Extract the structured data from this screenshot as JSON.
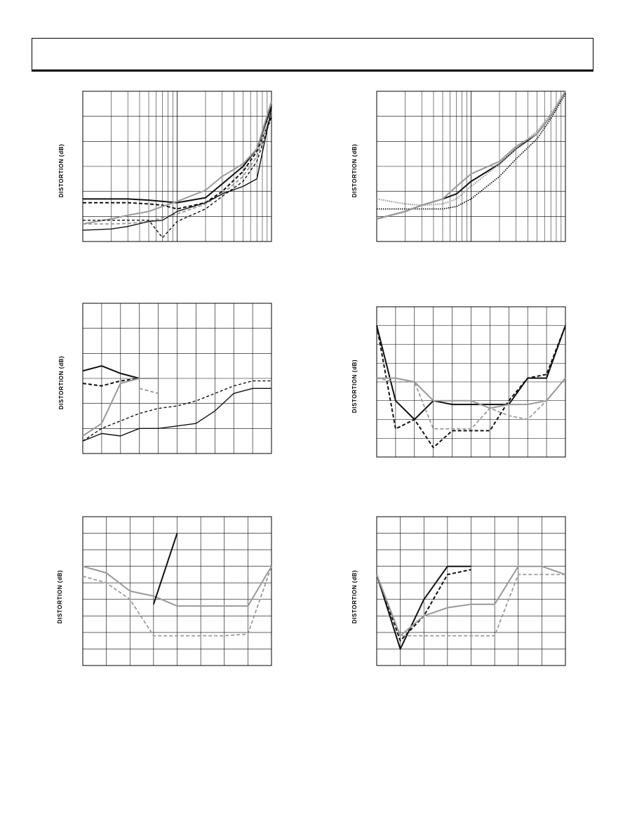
{
  "header": {
    "title": ""
  },
  "chart_data": [
    {
      "type": "line",
      "ylabel": "DISTORTION (dB)",
      "xscale": "log",
      "grid": true,
      "x": [
        1,
        2,
        3,
        5,
        7,
        10,
        20,
        30,
        50,
        70,
        100
      ],
      "series": [
        {
          "style": "solid-dark",
          "values": [
            1.7,
            1.7,
            1.7,
            1.65,
            1.6,
            1.55,
            1.75,
            2.3,
            3.0,
            3.7,
            5.4
          ]
        },
        {
          "style": "dashed-dark",
          "values": [
            1.55,
            1.55,
            1.55,
            1.5,
            1.45,
            1.3,
            1.55,
            2.0,
            2.8,
            3.6,
            5.0
          ]
        },
        {
          "style": "solid-light",
          "values": [
            0.7,
            0.9,
            1.05,
            1.2,
            1.4,
            1.6,
            2.05,
            2.6,
            3.1,
            3.7,
            5.6
          ]
        },
        {
          "style": "dashed-light",
          "values": [
            0.7,
            0.7,
            0.72,
            0.8,
            0.95,
            1.1,
            1.5,
            1.9,
            2.6,
            3.4,
            5.2
          ]
        },
        {
          "style": "solid-black-low",
          "values": [
            0.45,
            0.5,
            0.6,
            0.8,
            0.85,
            1.2,
            1.55,
            1.9,
            2.2,
            2.5,
            5.3
          ]
        },
        {
          "style": "dashed-black-low",
          "values": [
            0.85,
            0.85,
            0.85,
            0.85,
            0.15,
            0.8,
            1.3,
            1.8,
            2.4,
            3.2,
            5.0
          ]
        }
      ],
      "ylim": [
        0,
        6
      ]
    },
    {
      "type": "line",
      "ylabel": "DISTORTION (dB)",
      "xscale": "log",
      "grid": true,
      "x": [
        1,
        2,
        3,
        5,
        7,
        10,
        20,
        30,
        50,
        70,
        100
      ],
      "series": [
        {
          "style": "solid-dark",
          "values": [
            0.9,
            1.2,
            1.45,
            1.7,
            1.9,
            2.4,
            3.1,
            3.7,
            4.3,
            5.0,
            6.0
          ]
        },
        {
          "style": "dotted-dark",
          "values": [
            1.3,
            1.3,
            1.3,
            1.3,
            1.4,
            1.7,
            2.6,
            3.3,
            4.1,
            4.9,
            5.9
          ]
        },
        {
          "style": "solid-light",
          "values": [
            0.9,
            1.2,
            1.45,
            1.7,
            2.2,
            2.7,
            3.2,
            3.8,
            4.3,
            5.0,
            6.0
          ]
        },
        {
          "style": "dotted-light",
          "values": [
            1.7,
            1.5,
            1.45,
            1.5,
            1.7,
            2.2,
            3.1,
            3.7,
            4.4,
            5.1,
            6.0
          ]
        }
      ],
      "ylim": [
        0,
        6
      ]
    },
    {
      "type": "line",
      "ylabel": "DISTORTION (dB)",
      "grid": true,
      "x": [
        0,
        1,
        2,
        3,
        4,
        5,
        6,
        7,
        8,
        9,
        10
      ],
      "series": [
        {
          "style": "solid-dark",
          "values": [
            3.3,
            3.5,
            3.2,
            3.0,
            null,
            null,
            null,
            null,
            null,
            null,
            null
          ]
        },
        {
          "style": "dashed-dark",
          "values": [
            2.8,
            2.7,
            2.9,
            3.0,
            null,
            null,
            null,
            null,
            null,
            null,
            null
          ]
        },
        {
          "style": "solid-light",
          "values": [
            0.7,
            1.2,
            2.8,
            3.0,
            3.0,
            null,
            null,
            null,
            null,
            null,
            null
          ]
        },
        {
          "style": "dashed-light",
          "values": [
            null,
            null,
            null,
            2.6,
            2.4,
            null,
            null,
            null,
            null,
            null,
            null
          ]
        },
        {
          "style": "solid-low",
          "values": [
            0.5,
            0.8,
            0.7,
            1.0,
            1.0,
            1.1,
            1.2,
            1.7,
            2.4,
            2.6,
            2.6
          ]
        },
        {
          "style": "dashed-low",
          "values": [
            0.5,
            1.0,
            1.3,
            1.6,
            1.8,
            1.9,
            2.1,
            2.4,
            2.7,
            2.9,
            2.9
          ]
        }
      ],
      "ylim": [
        0,
        6
      ]
    },
    {
      "type": "line",
      "ylabel": "DISTORTION (dB)",
      "grid": true,
      "x": [
        0,
        1,
        2,
        3,
        4,
        5,
        6,
        7,
        8,
        9,
        10
      ],
      "series": [
        {
          "style": "solid-dark",
          "values": [
            7.0,
            3.0,
            2.0,
            3.0,
            2.8,
            2.8,
            2.8,
            2.8,
            4.2,
            4.2,
            7.0
          ]
        },
        {
          "style": "dashed-dark",
          "values": [
            7.0,
            1.5,
            2.0,
            0.5,
            1.4,
            1.4,
            1.4,
            3.0,
            4.2,
            4.4,
            7.0
          ]
        },
        {
          "style": "solid-light",
          "values": [
            4.2,
            4.2,
            4.0,
            3.0,
            3.0,
            3.0,
            2.6,
            2.8,
            2.8,
            3.0,
            4.2
          ]
        },
        {
          "style": "dashed-light",
          "values": [
            4.2,
            4.0,
            4.0,
            1.5,
            1.5,
            1.5,
            2.6,
            2.2,
            2.0,
            3.0,
            4.2
          ]
        }
      ],
      "ylim": [
        0,
        8
      ]
    },
    {
      "type": "line",
      "ylabel": "DISTORTION (dB)",
      "grid": true,
      "x": [
        0,
        1,
        2,
        3,
        4,
        5,
        6,
        7,
        8
      ],
      "series": [
        {
          "style": "solid-light",
          "values": [
            6.0,
            5.6,
            4.5,
            4.2,
            3.6,
            3.6,
            3.6,
            3.6,
            6.0
          ]
        },
        {
          "style": "dashed-light",
          "values": [
            5.4,
            5.0,
            4.0,
            1.8,
            1.8,
            1.8,
            1.8,
            1.9,
            6.0
          ]
        },
        {
          "style": "solid-dark",
          "values": [
            null,
            null,
            null,
            3.7,
            8.0,
            null,
            null,
            null,
            null
          ]
        }
      ],
      "ylim": [
        0,
        9
      ]
    },
    {
      "type": "line",
      "ylabel": "DISTORTION (dB)",
      "grid": true,
      "x": [
        0,
        1,
        2,
        3,
        4,
        5,
        6,
        7,
        8
      ],
      "series": [
        {
          "style": "solid-dark",
          "values": [
            5.5,
            1.0,
            4.0,
            6.0,
            6.0,
            null,
            null,
            null,
            null
          ]
        },
        {
          "style": "dashed-dark",
          "values": [
            5.5,
            1.5,
            3.0,
            5.5,
            5.8,
            null,
            null,
            null,
            null
          ]
        },
        {
          "style": "solid-light",
          "values": [
            5.5,
            1.8,
            3.0,
            3.5,
            3.7,
            3.7,
            6.0,
            6.0,
            5.5
          ]
        },
        {
          "style": "dashed-light",
          "values": [
            5.5,
            1.8,
            1.8,
            1.8,
            1.8,
            1.8,
            5.5,
            5.5,
            5.5
          ]
        }
      ],
      "ylim": [
        0,
        9
      ]
    }
  ]
}
